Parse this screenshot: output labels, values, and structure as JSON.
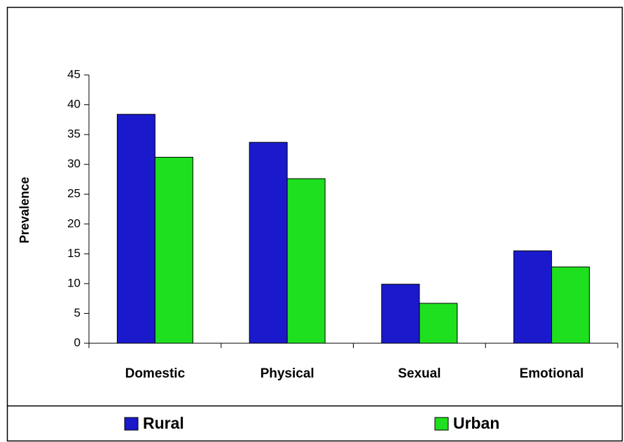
{
  "chart_data": {
    "type": "bar",
    "y_label": "Prevalence",
    "categories": [
      "Domestic",
      "Physical",
      "Sexual",
      "Emotional"
    ],
    "series": [
      {
        "name": "Rural",
        "color": "#1a1acc",
        "values": [
          38.4,
          33.7,
          9.9,
          15.5
        ]
      },
      {
        "name": "Urban",
        "color": "#1ee01e",
        "values": [
          31.2,
          27.6,
          6.7,
          12.8
        ]
      }
    ],
    "ylim": [
      0,
      45
    ],
    "yticks": [
      0,
      5,
      10,
      15,
      20,
      25,
      30,
      35,
      40,
      45
    ],
    "legend": "bottom"
  }
}
